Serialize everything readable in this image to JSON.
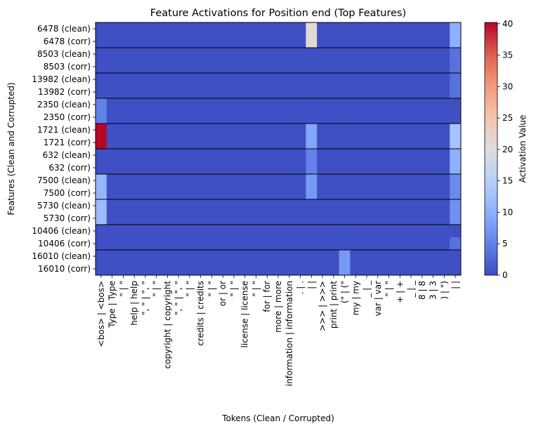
{
  "chart_data": {
    "type": "heatmap",
    "title": "Feature Activations for Position end (Top Features)",
    "xlabel": "Tokens (Clean / Corrupted)",
    "ylabel": "Features (Clean and Corrupted)",
    "colorbar_label": "Activation Value",
    "colormap": "coolwarm",
    "vmin": 0,
    "vmax": 40.2,
    "colorbar_ticks": [
      0,
      5,
      10,
      15,
      20,
      25,
      30,
      35,
      40
    ],
    "rows": [
      "6478 (clean)",
      "6478 (corr)",
      "8503 (clean)",
      "8503 (corr)",
      "13982 (clean)",
      "13982 (corr)",
      "2350 (clean)",
      "2350 (corr)",
      "1721 (clean)",
      "1721 (corr)",
      "632 (clean)",
      "632 (corr)",
      "7500 (clean)",
      "7500 (corr)",
      "5730 (clean)",
      "5730 (corr)",
      "10406 (clean)",
      "10406 (corr)",
      "16010 (clean)",
      "16010 (corr)"
    ],
    "columns": [
      "<bos> | <bos>",
      "Type | Type",
      "\" | \"",
      "help | help",
      "\", \" | \", \"",
      "\" | \"",
      "copyright | copyright",
      "\", \" | \", \"",
      "\" | \"",
      "credits | credits",
      "\" | \"",
      "or | or",
      "\" | \"",
      "license | license",
      "\" | \"",
      "for | for",
      "more | more",
      "information | information",
      ". | .",
      "| |",
      ">>> | >>>",
      "print | print",
      "(\" | (\"",
      "my | my",
      "_ | _",
      "var | var",
      "\" | \"",
      "+ | +",
      "_ | _",
      "8 | 8",
      "3 | 3",
      ") | \")",
      "| |"
    ],
    "pair_separators_after_rows": [
      1,
      3,
      5,
      7,
      9,
      11,
      13,
      15,
      17
    ],
    "background_value": 0.4,
    "cells": [
      {
        "row": 0,
        "col": 19,
        "value": 21
      },
      {
        "row": 1,
        "col": 19,
        "value": 21
      },
      {
        "row": 0,
        "col": 32,
        "value": 10
      },
      {
        "row": 1,
        "col": 32,
        "value": 10
      },
      {
        "row": 2,
        "col": 32,
        "value": 3.5
      },
      {
        "row": 3,
        "col": 32,
        "value": 3.5
      },
      {
        "row": 4,
        "col": 32,
        "value": 3.5
      },
      {
        "row": 5,
        "col": 32,
        "value": 3.5
      },
      {
        "row": 6,
        "col": 0,
        "value": 5
      },
      {
        "row": 7,
        "col": 0,
        "value": 5
      },
      {
        "row": 8,
        "col": 0,
        "value": 40
      },
      {
        "row": 9,
        "col": 0,
        "value": 40
      },
      {
        "row": 8,
        "col": 19,
        "value": 9
      },
      {
        "row": 9,
        "col": 19,
        "value": 9
      },
      {
        "row": 8,
        "col": 32,
        "value": 13
      },
      {
        "row": 9,
        "col": 32,
        "value": 13
      },
      {
        "row": 10,
        "col": 19,
        "value": 5
      },
      {
        "row": 11,
        "col": 19,
        "value": 5
      },
      {
        "row": 10,
        "col": 32,
        "value": 10
      },
      {
        "row": 11,
        "col": 32,
        "value": 10
      },
      {
        "row": 12,
        "col": 0,
        "value": 11
      },
      {
        "row": 13,
        "col": 0,
        "value": 11
      },
      {
        "row": 12,
        "col": 19,
        "value": 7.5
      },
      {
        "row": 13,
        "col": 19,
        "value": 7.5
      },
      {
        "row": 12,
        "col": 32,
        "value": 6
      },
      {
        "row": 13,
        "col": 32,
        "value": 6
      },
      {
        "row": 14,
        "col": 0,
        "value": 12
      },
      {
        "row": 15,
        "col": 0,
        "value": 12
      },
      {
        "row": 14,
        "col": 32,
        "value": 6.5
      },
      {
        "row": 15,
        "col": 32,
        "value": 6.5
      },
      {
        "row": 17,
        "col": 32,
        "value": 3.5
      },
      {
        "row": 18,
        "col": 22,
        "value": 7.5
      },
      {
        "row": 19,
        "col": 22,
        "value": 7.5
      }
    ]
  }
}
